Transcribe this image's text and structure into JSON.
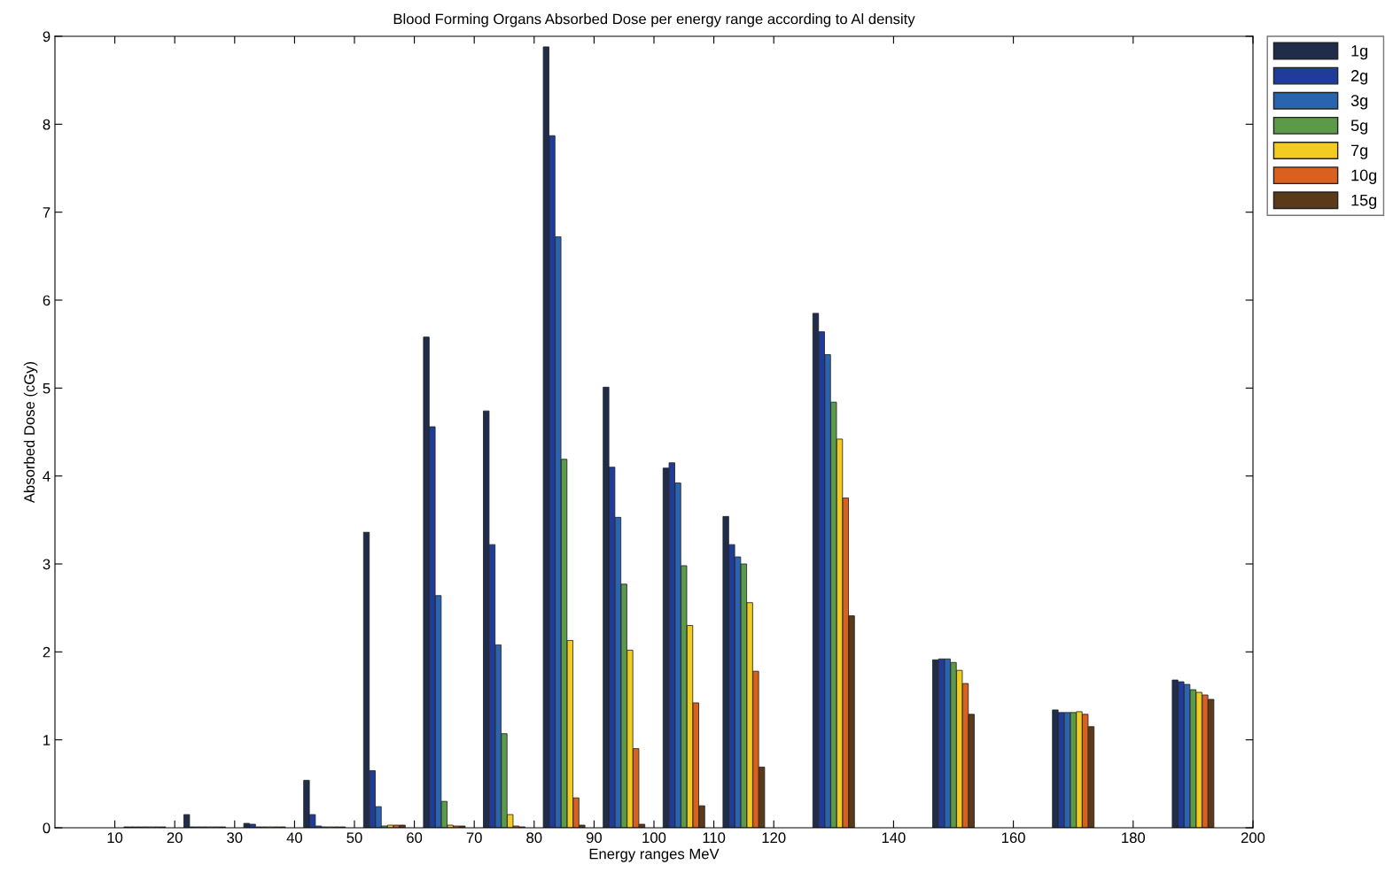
{
  "chart_data": {
    "type": "bar",
    "title": "Blood Forming Organs Absorbed Dose per energy range according to Al density",
    "xlabel": "Energy ranges MeV",
    "ylabel": "Absorbed Dose (cGy)",
    "x": [
      15,
      25,
      35,
      45,
      55,
      65,
      75,
      85,
      95,
      105,
      115,
      130,
      150,
      170,
      190
    ],
    "series": [
      {
        "name": "1g",
        "color": "#1f2d4a",
        "values": [
          0.01,
          0.15,
          0.05,
          0.54,
          3.36,
          5.58,
          4.74,
          8.88,
          5.01,
          4.09,
          3.54,
          5.85,
          1.91,
          1.34,
          1.68
        ]
      },
      {
        "name": "2g",
        "color": "#1f3c9a",
        "values": [
          0.01,
          0.01,
          0.04,
          0.15,
          0.65,
          4.56,
          3.22,
          7.87,
          4.1,
          4.15,
          3.22,
          5.64,
          1.92,
          1.31,
          1.66
        ]
      },
      {
        "name": "3g",
        "color": "#2a64b0",
        "values": [
          0.01,
          0.01,
          0.01,
          0.02,
          0.24,
          2.64,
          2.08,
          6.72,
          3.53,
          3.92,
          3.08,
          5.38,
          1.92,
          1.31,
          1.63
        ]
      },
      {
        "name": "5g",
        "color": "#5a9a48",
        "values": [
          0.01,
          0.01,
          0.01,
          0.01,
          0.02,
          0.3,
          1.07,
          4.19,
          2.77,
          2.98,
          3.0,
          4.84,
          1.88,
          1.31,
          1.57
        ]
      },
      {
        "name": "7g",
        "color": "#f2cc20",
        "values": [
          0.01,
          0.01,
          0.01,
          0.01,
          0.03,
          0.03,
          0.15,
          2.13,
          2.02,
          2.3,
          2.56,
          4.42,
          1.79,
          1.32,
          1.54
        ]
      },
      {
        "name": "10g",
        "color": "#d9601f",
        "values": [
          0.01,
          0.01,
          0.01,
          0.01,
          0.03,
          0.02,
          0.02,
          0.34,
          0.9,
          1.42,
          1.78,
          3.75,
          1.64,
          1.29,
          1.51
        ]
      },
      {
        "name": "15g",
        "color": "#5a3a1a",
        "values": [
          0.01,
          0.01,
          0.01,
          0.01,
          0.03,
          0.02,
          0.01,
          0.03,
          0.04,
          0.25,
          0.69,
          2.41,
          1.29,
          1.15,
          1.46
        ]
      }
    ],
    "xlim": [
      0,
      200
    ],
    "xticks": [
      10,
      20,
      30,
      40,
      50,
      60,
      70,
      80,
      90,
      100,
      110,
      120,
      140,
      160,
      180,
      200
    ],
    "ylim": [
      0,
      9
    ],
    "yticks": [
      0,
      1,
      2,
      3,
      4,
      5,
      6,
      7,
      8,
      9
    ],
    "grid": false,
    "legend": "top right"
  }
}
